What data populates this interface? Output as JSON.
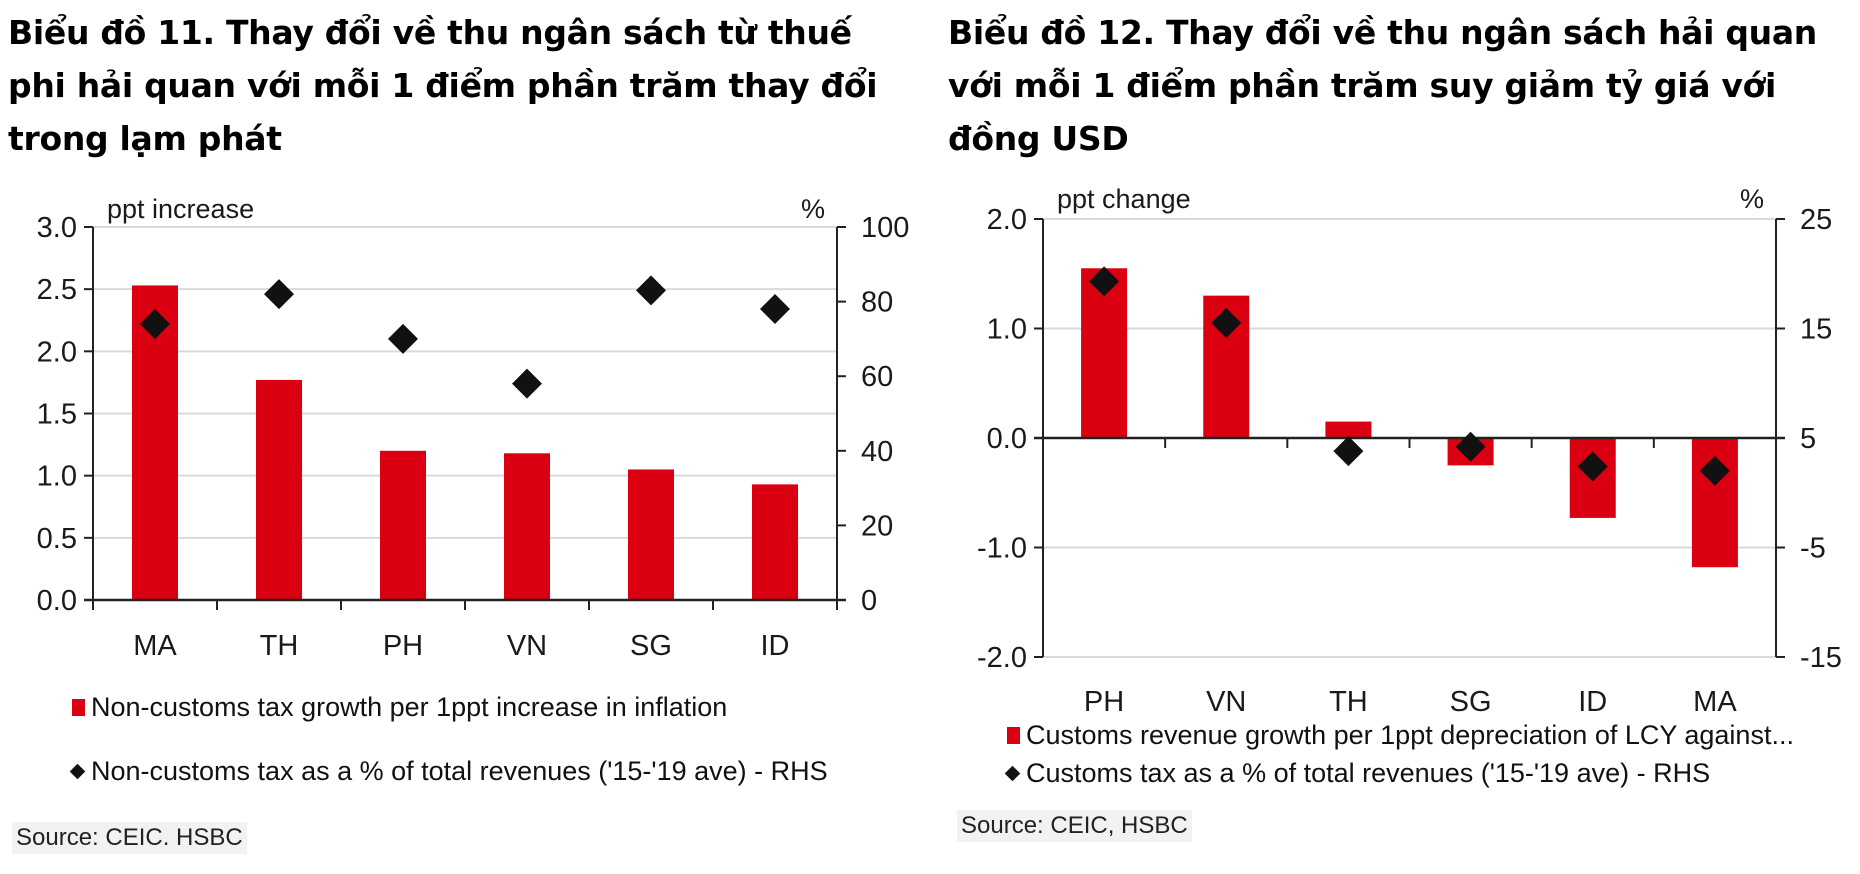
{
  "titles": {
    "chart11": "Biểu đồ 11. Thay đổi về thu ngân sách từ thuế phi hải quan với mỗi 1 điểm phần trăm thay đổi trong lạm phát",
    "chart12": "Biểu đồ 12. Thay đổi về thu ngân sách hải quan với mỗi 1 điểm phần trăm suy giảm tỷ giá với đồng USD"
  },
  "colors": {
    "bar": "#db0011",
    "diamond": "#111111",
    "grid": "#d9d9d9",
    "axis": "#222222"
  },
  "chart_data": [
    {
      "type": "bar",
      "title": "Biểu đồ 11. Thay đổi về thu ngân sách từ thuế phi hải quan với mỗi 1 điểm phần trăm thay đổi trong lạm phát",
      "categories": [
        "MA",
        "TH",
        "PH",
        "VN",
        "SG",
        "ID"
      ],
      "ylabel": "ppt increase",
      "y2label": "%",
      "ylim": [
        0,
        3
      ],
      "yticks": [
        "0.0",
        "0.5",
        "1.0",
        "1.5",
        "2.0",
        "2.5",
        "3.0"
      ],
      "y2lim": [
        0,
        100
      ],
      "y2ticks": [
        "0",
        "20",
        "40",
        "60",
        "80",
        "100"
      ],
      "grid": true,
      "legend_position": "bottom",
      "series": [
        {
          "name": "Non-customs tax growth per 1ppt increase in inflation",
          "type": "bar",
          "axis": "left",
          "values": [
            2.53,
            1.77,
            1.2,
            1.18,
            1.05,
            0.93
          ]
        },
        {
          "name": "Non-customs tax as a % of total revenues ('15-'19 ave) - RHS",
          "type": "scatter",
          "marker": "diamond",
          "axis": "right",
          "values": [
            74,
            82,
            70,
            58,
            83,
            78
          ]
        }
      ],
      "source": "Source: CEIC. HSBC"
    },
    {
      "type": "bar",
      "title": "Biểu đồ 12. Thay đổi về thu ngân sách hải quan với mỗi 1 điểm phần trăm suy giảm tỷ giá với đồng USD",
      "categories": [
        "PH",
        "VN",
        "TH",
        "SG",
        "ID",
        "MA"
      ],
      "ylabel": "ppt change",
      "y2label": "%",
      "ylim": [
        -2,
        2
      ],
      "yticks": [
        "-2.0",
        "-1.0",
        "0.0",
        "1.0",
        "2.0"
      ],
      "y2lim": [
        -15,
        25
      ],
      "y2ticks": [
        "-15",
        "-5",
        "5",
        "15",
        "25"
      ],
      "grid": true,
      "legend_position": "bottom",
      "series": [
        {
          "name": "Customs revenue growth per 1ppt depreciation of LCY against...",
          "type": "bar",
          "axis": "left",
          "values": [
            1.55,
            1.3,
            0.15,
            -0.25,
            -0.73,
            -1.18
          ]
        },
        {
          "name": "Customs tax as a % of total revenues ('15-'19 ave) - RHS",
          "type": "scatter",
          "marker": "diamond",
          "axis": "right",
          "values": [
            19.3,
            15.5,
            3.8,
            4.2,
            2.4,
            2.0
          ]
        }
      ],
      "source": "Source: CEIC, HSBC"
    }
  ]
}
